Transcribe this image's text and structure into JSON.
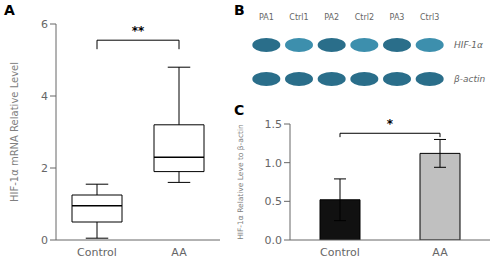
{
  "chart_data": [
    {
      "type": "box",
      "title": "A",
      "categories": [
        "Control",
        "AA"
      ],
      "stats": [
        {
          "median": 0.95,
          "q1": 0.5,
          "q3": 1.25,
          "whisker_low": 0.05,
          "whisker_high": 1.55
        },
        {
          "median": 2.3,
          "q1": 1.9,
          "q3": 3.2,
          "whisker_low": 1.6,
          "whisker_high": 4.8
        }
      ],
      "ylabel": "HIF-1α mRNA Relative Level",
      "ylim": [
        0,
        6
      ],
      "yticks": [
        0,
        2,
        4,
        6
      ],
      "grid": false,
      "annotations": [
        {
          "text": "**",
          "from": "Control",
          "to": "AA",
          "y": 5.55,
          "y_start": 5.3
        }
      ]
    },
    {
      "type": "blot",
      "title": "B",
      "categories": [
        "PA1",
        "Ctrl1",
        "PA2",
        "Ctrl2",
        "PA3",
        "Ctrl3"
      ],
      "series": [
        {
          "name": "HIF-1α",
          "colors": [
            "#2a6e8a",
            "#3d8fad",
            "#2a6e8a",
            "#3d8fad",
            "#2a6e8a",
            "#3d8fad"
          ]
        },
        {
          "name": "β-actin",
          "colors": [
            "#2a6e8a",
            "#2a6e8a",
            "#2a6e8a",
            "#2a6e8a",
            "#2a6e8a",
            "#2a6e8a"
          ]
        }
      ]
    },
    {
      "type": "bar",
      "title": "C",
      "categories": [
        "Control",
        "AA"
      ],
      "values": [
        0.52,
        1.12
      ],
      "errors": [
        0.27,
        0.18
      ],
      "colors": [
        "#111111",
        "#c0c0c0"
      ],
      "ylabel": "HIF-1α Relative Leve to β-actin",
      "ylim": [
        0,
        1.5
      ],
      "yticks": [
        {
          "value": 0,
          "label": "0.0"
        },
        0.5,
        {
          "value": 1,
          "label": "1.0"
        },
        1.5
      ],
      "grid": false,
      "annotations": [
        {
          "text": "*",
          "from": "Control",
          "to": "AA",
          "y": 1.38,
          "y_start": 1.33
        }
      ]
    }
  ]
}
